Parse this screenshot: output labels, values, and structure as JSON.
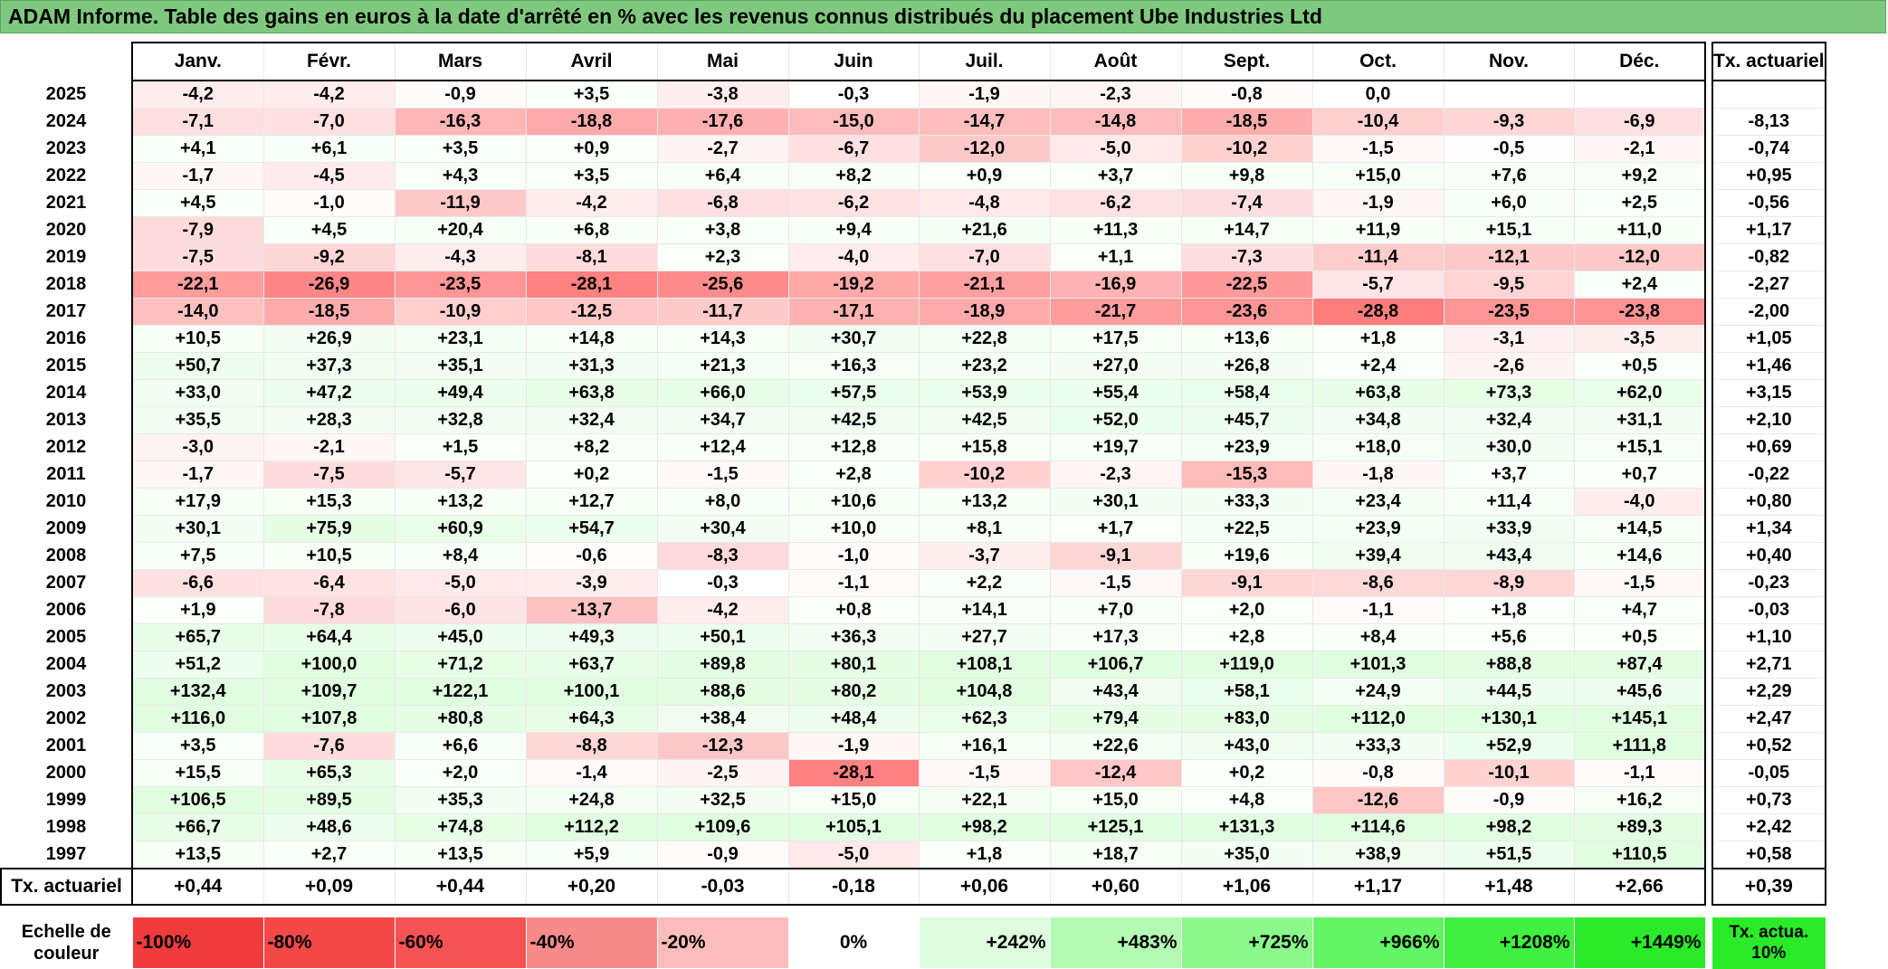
{
  "title": "ADAM Informe. Table des gains en euros à la date d'arrêté en % avec les revenus connus distribués du placement Ube Industries Ltd",
  "months": [
    "Janv.",
    "Févr.",
    "Mars",
    "Avril",
    "Mai",
    "Juin",
    "Juil.",
    "Août",
    "Sept.",
    "Oct.",
    "Nov.",
    "Déc."
  ],
  "actu_header": "Tx. actuariel",
  "rows": [
    {
      "year": "2025",
      "values": [
        "-4,2",
        "-4,2",
        "-0,9",
        "+3,5",
        "-3,8",
        "-0,3",
        "-1,9",
        "-2,3",
        "-0,8",
        "0,0",
        "",
        ""
      ],
      "actu": ""
    },
    {
      "year": "2024",
      "values": [
        "-7,1",
        "-7,0",
        "-16,3",
        "-18,8",
        "-17,6",
        "-15,0",
        "-14,7",
        "-14,8",
        "-18,5",
        "-10,4",
        "-9,3",
        "-6,9"
      ],
      "actu": "-8,13"
    },
    {
      "year": "2023",
      "values": [
        "+4,1",
        "+6,1",
        "+3,5",
        "+0,9",
        "-2,7",
        "-6,7",
        "-12,0",
        "-5,0",
        "-10,2",
        "-1,5",
        "-0,5",
        "-2,1"
      ],
      "actu": "-0,74"
    },
    {
      "year": "2022",
      "values": [
        "-1,7",
        "-4,5",
        "+4,3",
        "+3,5",
        "+6,4",
        "+8,2",
        "+0,9",
        "+3,7",
        "+9,8",
        "+15,0",
        "+7,6",
        "+9,2"
      ],
      "actu": "+0,95"
    },
    {
      "year": "2021",
      "values": [
        "+4,5",
        "-1,0",
        "-11,9",
        "-4,2",
        "-6,8",
        "-6,2",
        "-4,8",
        "-6,2",
        "-7,4",
        "-1,9",
        "+6,0",
        "+2,5"
      ],
      "actu": "-0,56"
    },
    {
      "year": "2020",
      "values": [
        "-7,9",
        "+4,5",
        "+20,4",
        "+6,8",
        "+3,8",
        "+9,4",
        "+21,6",
        "+11,3",
        "+14,7",
        "+11,9",
        "+15,1",
        "+11,0"
      ],
      "actu": "+1,17"
    },
    {
      "year": "2019",
      "values": [
        "-7,5",
        "-9,2",
        "-4,3",
        "-8,1",
        "+2,3",
        "-4,0",
        "-7,0",
        "+1,1",
        "-7,3",
        "-11,4",
        "-12,1",
        "-12,0"
      ],
      "actu": "-0,82"
    },
    {
      "year": "2018",
      "values": [
        "-22,1",
        "-26,9",
        "-23,5",
        "-28,1",
        "-25,6",
        "-19,2",
        "-21,1",
        "-16,9",
        "-22,5",
        "-5,7",
        "-9,5",
        "+2,4"
      ],
      "actu": "-2,27"
    },
    {
      "year": "2017",
      "values": [
        "-14,0",
        "-18,5",
        "-10,9",
        "-12,5",
        "-11,7",
        "-17,1",
        "-18,9",
        "-21,7",
        "-23,6",
        "-28,8",
        "-23,5",
        "-23,8"
      ],
      "actu": "-2,00"
    },
    {
      "year": "2016",
      "values": [
        "+10,5",
        "+26,9",
        "+23,1",
        "+14,8",
        "+14,3",
        "+30,7",
        "+22,8",
        "+17,5",
        "+13,6",
        "+1,8",
        "-3,1",
        "-3,5"
      ],
      "actu": "+1,05"
    },
    {
      "year": "2015",
      "values": [
        "+50,7",
        "+37,3",
        "+35,1",
        "+31,3",
        "+21,3",
        "+16,3",
        "+23,2",
        "+27,0",
        "+26,8",
        "+2,4",
        "-2,6",
        "+0,5"
      ],
      "actu": "+1,46"
    },
    {
      "year": "2014",
      "values": [
        "+33,0",
        "+47,2",
        "+49,4",
        "+63,8",
        "+66,0",
        "+57,5",
        "+53,9",
        "+55,4",
        "+58,4",
        "+63,8",
        "+73,3",
        "+62,0"
      ],
      "actu": "+3,15"
    },
    {
      "year": "2013",
      "values": [
        "+35,5",
        "+28,3",
        "+32,8",
        "+32,4",
        "+34,7",
        "+42,5",
        "+42,5",
        "+52,0",
        "+45,7",
        "+34,8",
        "+32,4",
        "+31,1"
      ],
      "actu": "+2,10"
    },
    {
      "year": "2012",
      "values": [
        "-3,0",
        "-2,1",
        "+1,5",
        "+8,2",
        "+12,4",
        "+12,8",
        "+15,8",
        "+19,7",
        "+23,9",
        "+18,0",
        "+30,0",
        "+15,1"
      ],
      "actu": "+0,69"
    },
    {
      "year": "2011",
      "values": [
        "-1,7",
        "-7,5",
        "-5,7",
        "+0,2",
        "-1,5",
        "+2,8",
        "-10,2",
        "-2,3",
        "-15,3",
        "-1,8",
        "+3,7",
        "+0,7"
      ],
      "actu": "-0,22"
    },
    {
      "year": "2010",
      "values": [
        "+17,9",
        "+15,3",
        "+13,2",
        "+12,7",
        "+8,0",
        "+10,6",
        "+13,2",
        "+30,1",
        "+33,3",
        "+23,4",
        "+11,4",
        "-4,0"
      ],
      "actu": "+0,80"
    },
    {
      "year": "2009",
      "values": [
        "+30,1",
        "+75,9",
        "+60,9",
        "+54,7",
        "+30,4",
        "+10,0",
        "+8,1",
        "+1,7",
        "+22,5",
        "+23,9",
        "+33,9",
        "+14,5"
      ],
      "actu": "+1,34"
    },
    {
      "year": "2008",
      "values": [
        "+7,5",
        "+10,5",
        "+8,4",
        "-0,6",
        "-8,3",
        "-1,0",
        "-3,7",
        "-9,1",
        "+19,6",
        "+39,4",
        "+43,4",
        "+14,6"
      ],
      "actu": "+0,40"
    },
    {
      "year": "2007",
      "values": [
        "-6,6",
        "-6,4",
        "-5,0",
        "-3,9",
        "-0,3",
        "-1,1",
        "+2,2",
        "-1,5",
        "-9,1",
        "-8,6",
        "-8,9",
        "-1,5"
      ],
      "actu": "-0,23"
    },
    {
      "year": "2006",
      "values": [
        "+1,9",
        "-7,8",
        "-6,0",
        "-13,7",
        "-4,2",
        "+0,8",
        "+14,1",
        "+7,0",
        "+2,0",
        "-1,1",
        "+1,8",
        "+4,7"
      ],
      "actu": "-0,03"
    },
    {
      "year": "2005",
      "values": [
        "+65,7",
        "+64,4",
        "+45,0",
        "+49,3",
        "+50,1",
        "+36,3",
        "+27,7",
        "+17,3",
        "+2,8",
        "+8,4",
        "+5,6",
        "+0,5"
      ],
      "actu": "+1,10"
    },
    {
      "year": "2004",
      "values": [
        "+51,2",
        "+100,0",
        "+71,2",
        "+63,7",
        "+89,8",
        "+80,1",
        "+108,1",
        "+106,7",
        "+119,0",
        "+101,3",
        "+88,8",
        "+87,4"
      ],
      "actu": "+2,71"
    },
    {
      "year": "2003",
      "values": [
        "+132,4",
        "+109,7",
        "+122,1",
        "+100,1",
        "+88,6",
        "+80,2",
        "+104,8",
        "+43,4",
        "+58,1",
        "+24,9",
        "+44,5",
        "+45,6"
      ],
      "actu": "+2,29"
    },
    {
      "year": "2002",
      "values": [
        "+116,0",
        "+107,8",
        "+80,8",
        "+64,3",
        "+38,4",
        "+48,4",
        "+62,3",
        "+79,4",
        "+83,0",
        "+112,0",
        "+130,1",
        "+145,1"
      ],
      "actu": "+2,47"
    },
    {
      "year": "2001",
      "values": [
        "+3,5",
        "-7,6",
        "+6,6",
        "-8,8",
        "-12,3",
        "-1,9",
        "+16,1",
        "+22,6",
        "+43,0",
        "+33,3",
        "+52,9",
        "+111,8"
      ],
      "actu": "+0,52"
    },
    {
      "year": "2000",
      "values": [
        "+15,5",
        "+65,3",
        "+2,0",
        "-1,4",
        "-2,5",
        "-28,1",
        "-1,5",
        "-12,4",
        "+0,2",
        "-0,8",
        "-10,1",
        "-1,1"
      ],
      "actu": "-0,05"
    },
    {
      "year": "1999",
      "values": [
        "+106,5",
        "+89,5",
        "+35,3",
        "+24,8",
        "+32,5",
        "+15,0",
        "+22,1",
        "+15,0",
        "+4,8",
        "-12,6",
        "-0,9",
        "+16,2"
      ],
      "actu": "+0,73"
    },
    {
      "year": "1998",
      "values": [
        "+66,7",
        "+48,6",
        "+74,8",
        "+112,2",
        "+109,6",
        "+105,1",
        "+98,2",
        "+125,1",
        "+131,3",
        "+114,6",
        "+98,2",
        "+89,3"
      ],
      "actu": "+2,42"
    },
    {
      "year": "1997",
      "values": [
        "+13,5",
        "+2,7",
        "+13,5",
        "+5,9",
        "-0,9",
        "-5,0",
        "+1,8",
        "+18,7",
        "+35,0",
        "+38,9",
        "+51,5",
        "+110,5"
      ],
      "actu": "+0,58"
    }
  ],
  "footer": {
    "label": "Tx. actuariel",
    "values": [
      "+0,44",
      "+0,09",
      "+0,44",
      "+0,20",
      "-0,03",
      "-0,18",
      "+0,06",
      "+0,60",
      "+1,06",
      "+1,17",
      "+1,48",
      "+2,66"
    ],
    "actu": "+0,39"
  },
  "scale": {
    "label": "Echelle de couleur",
    "items": [
      {
        "label": "-100%",
        "color": "#f03c3c",
        "align": "left"
      },
      {
        "label": "-80%",
        "color": "#f34848",
        "align": "left"
      },
      {
        "label": "-60%",
        "color": "#f55353",
        "align": "left"
      },
      {
        "label": "-40%",
        "color": "#f88a8a",
        "align": "left"
      },
      {
        "label": "-20%",
        "color": "#fbbcbc",
        "align": "left"
      },
      {
        "label": "0%",
        "color": "#ffffff",
        "align": "center"
      },
      {
        "label": "+242%",
        "color": "#ddfddd",
        "align": "right"
      },
      {
        "label": "+483%",
        "color": "#b3fbb3",
        "align": "right"
      },
      {
        "label": "+725%",
        "color": "#8bf88b",
        "align": "right"
      },
      {
        "label": "+966%",
        "color": "#63f563",
        "align": "right"
      },
      {
        "label": "+1208%",
        "color": "#40f040",
        "align": "right"
      },
      {
        "label": "+1449%",
        "color": "#2aea2a",
        "align": "right"
      }
    ],
    "actu_label": "Tx. actua. 10%",
    "actu_color": "#2aea2a"
  }
}
